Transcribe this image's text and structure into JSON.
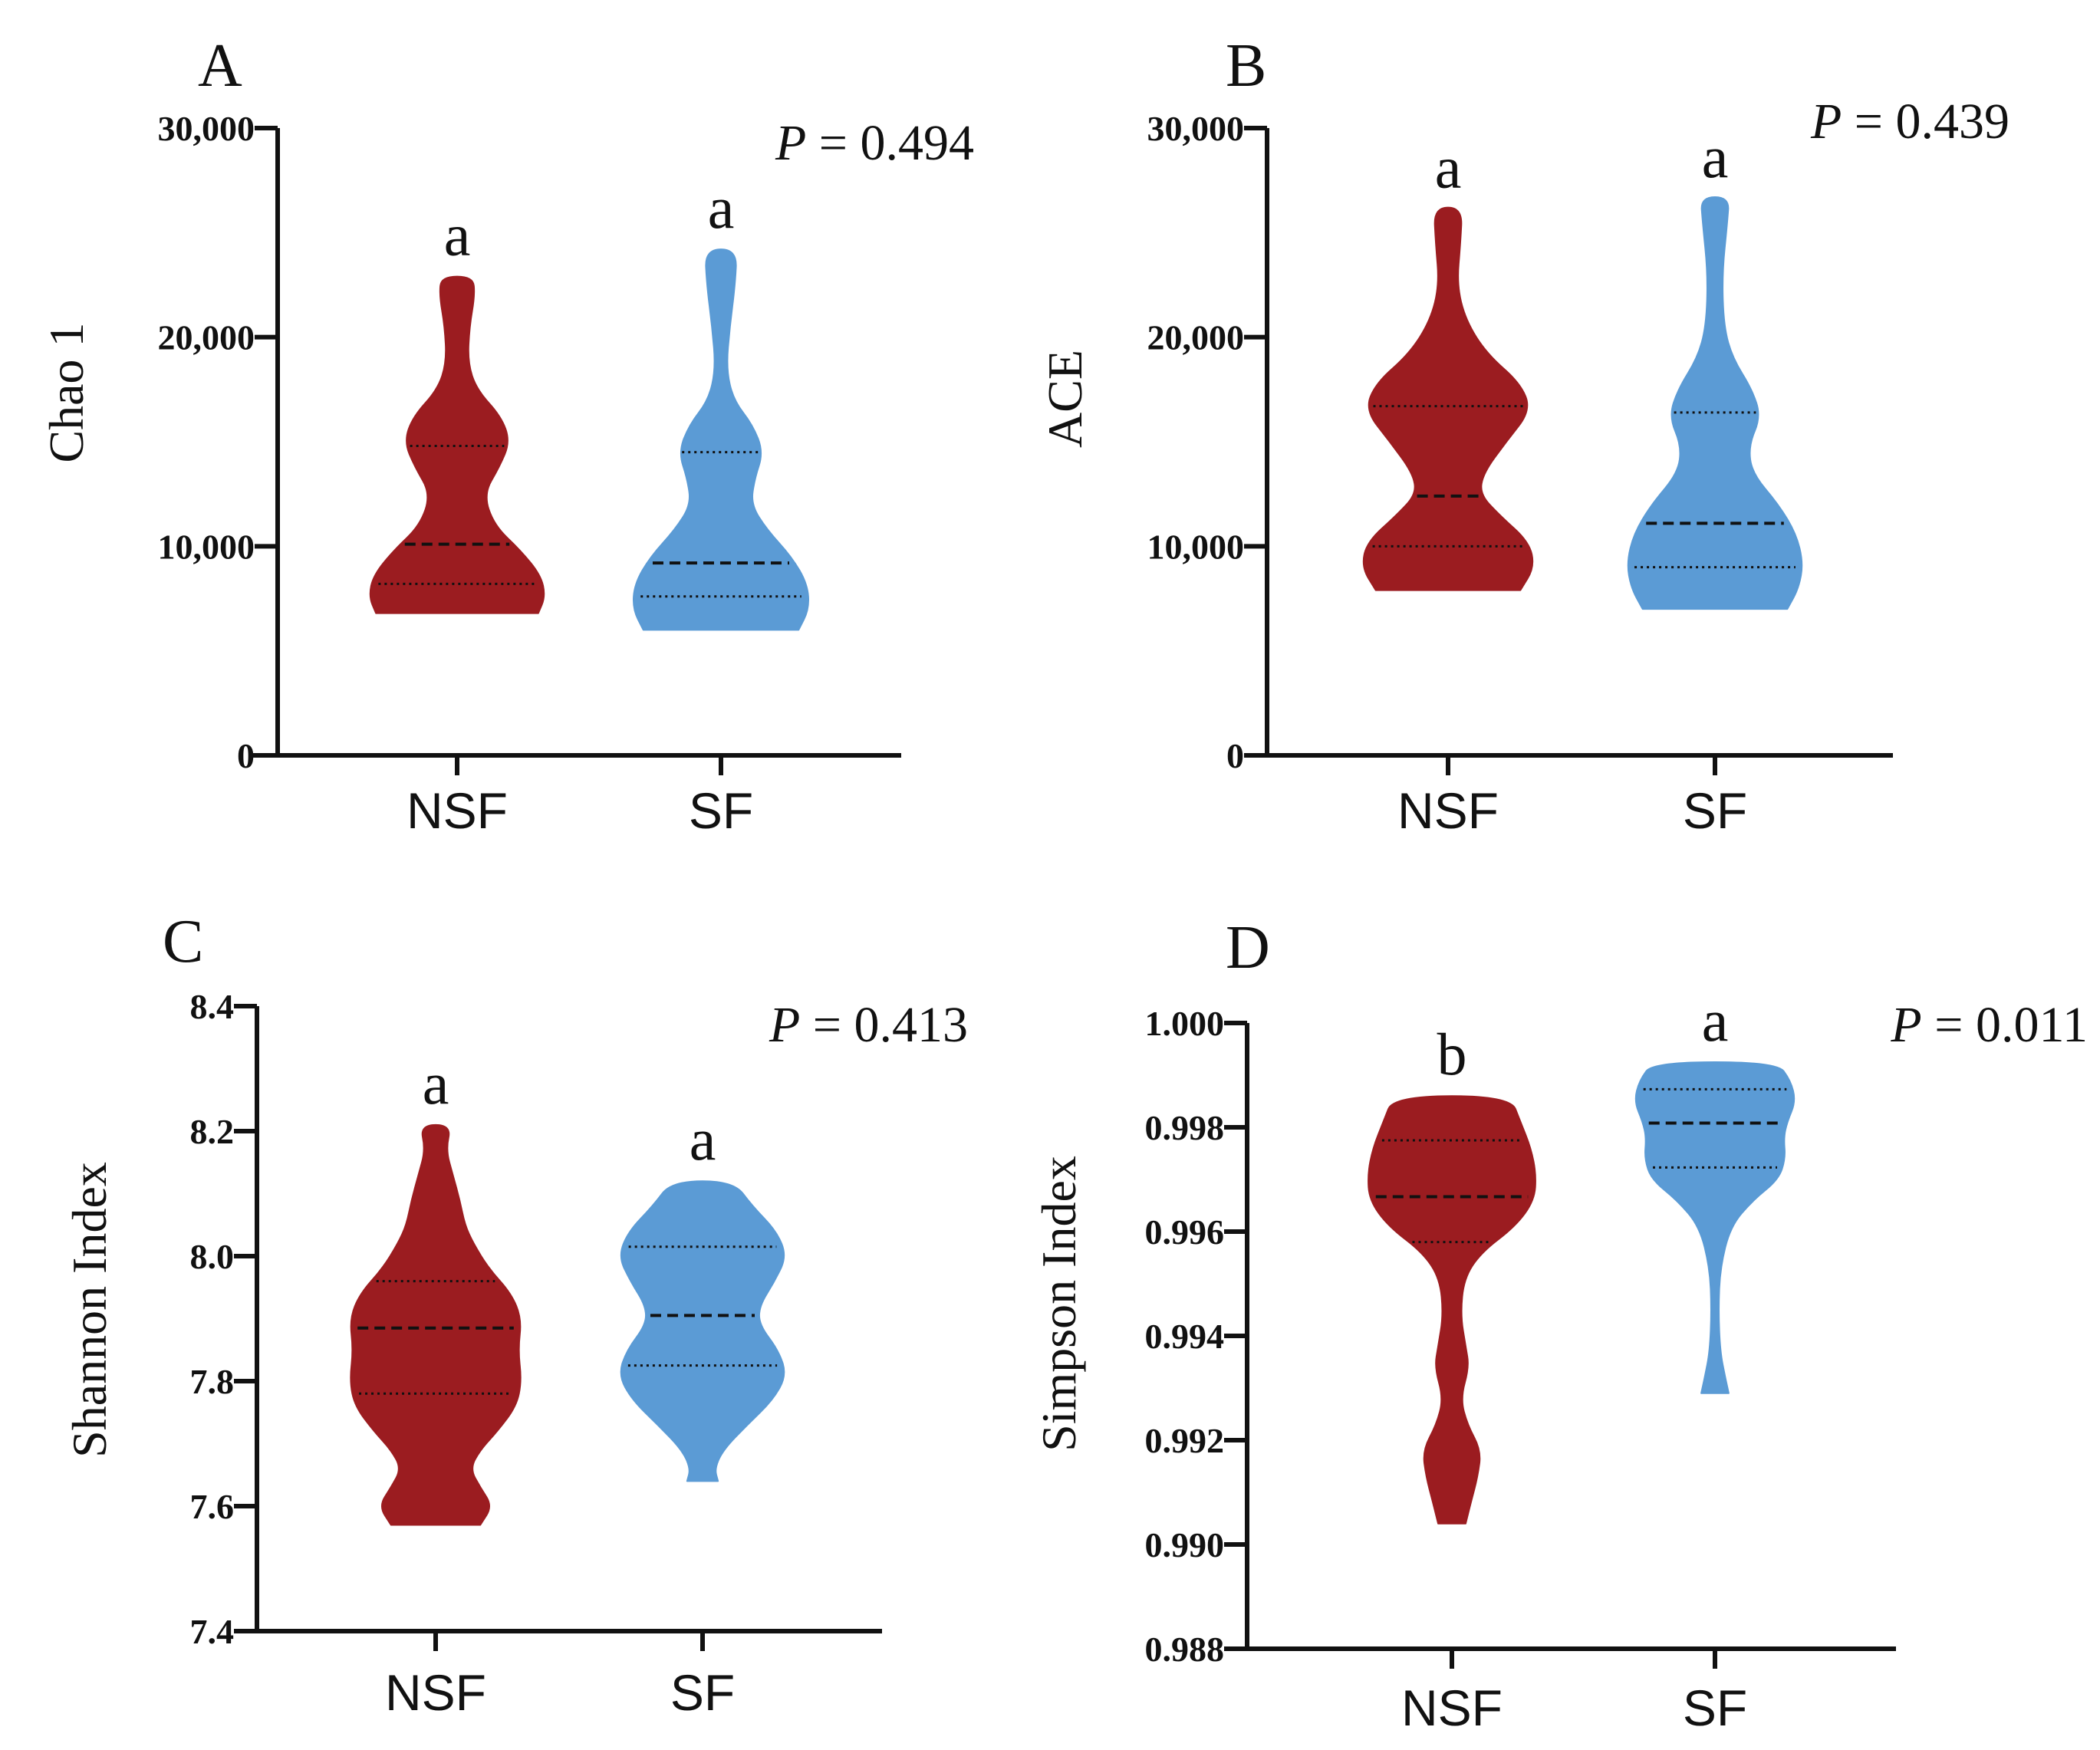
{
  "figure": {
    "colors": {
      "NSF": "#9b1c20",
      "SF": "#5b9bd5",
      "axis": "#111111"
    }
  },
  "chart_data": [
    {
      "panel": "A",
      "type": "violin",
      "ylabel": "Chao 1",
      "p_label": "P",
      "p_text": " = 0.494",
      "ylim": [
        0,
        30000
      ],
      "yticks": [
        0,
        10000,
        20000,
        30000
      ],
      "ytick_labels": [
        "0",
        "10,000",
        "20,000",
        "30,000"
      ],
      "categories": [
        "NSF",
        "SF"
      ],
      "series": [
        {
          "name": "NSF",
          "min": 6800,
          "max": 22900,
          "q1": 8200,
          "median": 10100,
          "q3": 14800,
          "sig": "a",
          "profile": [
            [
              6800,
              0.92
            ],
            [
              7600,
              1.0
            ],
            [
              8600,
              0.95
            ],
            [
              9800,
              0.72
            ],
            [
              11000,
              0.42
            ],
            [
              12500,
              0.3
            ],
            [
              13800,
              0.48
            ],
            [
              15000,
              0.6
            ],
            [
              16200,
              0.5
            ],
            [
              17500,
              0.22
            ],
            [
              18800,
              0.12
            ],
            [
              20500,
              0.14
            ],
            [
              22000,
              0.2
            ],
            [
              22900,
              0.18
            ]
          ]
        },
        {
          "name": "SF",
          "min": 6000,
          "max": 24200,
          "q1": 7600,
          "median": 9200,
          "q3": 14500,
          "sig": "a",
          "profile": [
            [
              6000,
              0.88
            ],
            [
              7000,
              1.0
            ],
            [
              8200,
              0.98
            ],
            [
              9500,
              0.8
            ],
            [
              10800,
              0.52
            ],
            [
              12000,
              0.34
            ],
            [
              13200,
              0.38
            ],
            [
              14500,
              0.48
            ],
            [
              15800,
              0.36
            ],
            [
              17000,
              0.14
            ],
            [
              18500,
              0.06
            ],
            [
              20500,
              0.1
            ],
            [
              22500,
              0.16
            ],
            [
              24200,
              0.18
            ]
          ]
        }
      ]
    },
    {
      "panel": "B",
      "type": "violin",
      "ylabel": "ACE",
      "p_label": "P",
      "p_text": " = 0.439",
      "ylim": [
        0,
        30000
      ],
      "yticks": [
        0,
        10000,
        20000,
        30000
      ],
      "ytick_labels": [
        "0",
        "10,000",
        "20,000",
        "30,000"
      ],
      "categories": [
        "NSF",
        "SF"
      ],
      "series": [
        {
          "name": "NSF",
          "min": 7900,
          "max": 26200,
          "q1": 10000,
          "median": 12400,
          "q3": 16700,
          "sig": "a",
          "profile": [
            [
              7900,
              0.82
            ],
            [
              9000,
              0.98
            ],
            [
              10200,
              0.92
            ],
            [
              11500,
              0.58
            ],
            [
              12500,
              0.36
            ],
            [
              13500,
              0.4
            ],
            [
              15000,
              0.66
            ],
            [
              16500,
              0.94
            ],
            [
              17800,
              0.82
            ],
            [
              19200,
              0.44
            ],
            [
              20800,
              0.2
            ],
            [
              22500,
              0.1
            ],
            [
              24500,
              0.14
            ],
            [
              26200,
              0.16
            ]
          ]
        },
        {
          "name": "SF",
          "min": 7000,
          "max": 26700,
          "q1": 9000,
          "median": 11100,
          "q3": 16400,
          "sig": "a",
          "profile": [
            [
              7000,
              0.82
            ],
            [
              8000,
              0.95
            ],
            [
              9200,
              1.0
            ],
            [
              10600,
              0.92
            ],
            [
              12000,
              0.72
            ],
            [
              13500,
              0.42
            ],
            [
              14800,
              0.38
            ],
            [
              16200,
              0.52
            ],
            [
              17500,
              0.42
            ],
            [
              19000,
              0.2
            ],
            [
              20500,
              0.1
            ],
            [
              23000,
              0.08
            ],
            [
              25500,
              0.14
            ],
            [
              26700,
              0.16
            ]
          ]
        }
      ]
    },
    {
      "panel": "C",
      "type": "violin",
      "ylabel": "Shannon Index",
      "p_label": "P",
      "p_text": " = 0.413",
      "ylim": [
        7.4,
        8.4
      ],
      "yticks": [
        7.4,
        7.6,
        7.8,
        8.0,
        8.2,
        8.4
      ],
      "ytick_labels": [
        "7.4",
        "7.6",
        "7.8",
        "8.0",
        "8.2",
        "8.4"
      ],
      "categories": [
        "NSF",
        "SF"
      ],
      "series": [
        {
          "name": "NSF",
          "min": 7.57,
          "max": 8.21,
          "q1": 7.78,
          "median": 7.885,
          "q3": 7.96,
          "sig": "a",
          "profile": [
            [
              7.57,
              0.52
            ],
            [
              7.6,
              0.66
            ],
            [
              7.63,
              0.52
            ],
            [
              7.66,
              0.4
            ],
            [
              7.69,
              0.52
            ],
            [
              7.72,
              0.72
            ],
            [
              7.76,
              0.94
            ],
            [
              7.8,
              1.0
            ],
            [
              7.85,
              0.96
            ],
            [
              7.9,
              1.0
            ],
            [
              7.94,
              0.88
            ],
            [
              7.98,
              0.62
            ],
            [
              8.02,
              0.44
            ],
            [
              8.05,
              0.34
            ],
            [
              8.09,
              0.28
            ],
            [
              8.13,
              0.2
            ],
            [
              8.17,
              0.12
            ],
            [
              8.21,
              0.18
            ]
          ]
        },
        {
          "name": "SF",
          "min": 7.64,
          "max": 8.12,
          "q1": 7.825,
          "median": 7.905,
          "q3": 8.015,
          "sig": "a",
          "profile": [
            [
              7.64,
              0.18
            ],
            [
              7.66,
              0.14
            ],
            [
              7.69,
              0.24
            ],
            [
              7.73,
              0.52
            ],
            [
              7.77,
              0.82
            ],
            [
              7.81,
              0.98
            ],
            [
              7.85,
              0.88
            ],
            [
              7.89,
              0.66
            ],
            [
              7.92,
              0.66
            ],
            [
              7.96,
              0.84
            ],
            [
              8.0,
              0.98
            ],
            [
              8.04,
              0.86
            ],
            [
              8.08,
              0.58
            ],
            [
              8.12,
              0.36
            ]
          ]
        }
      ]
    },
    {
      "panel": "D",
      "type": "violin",
      "ylabel": "Simpson Index",
      "p_label": "P",
      "p_text": " = 0.011",
      "ylim": [
        0.988,
        1.0
      ],
      "yticks": [
        0.988,
        0.99,
        0.992,
        0.994,
        0.996,
        0.998,
        1.0
      ],
      "ytick_labels": [
        "0.988",
        "0.990",
        "0.992",
        "0.994",
        "0.996",
        "0.998",
        "1.000"
      ],
      "categories": [
        "NSF",
        "SF"
      ],
      "series": [
        {
          "name": "NSF",
          "min": 0.9904,
          "max": 0.9986,
          "q1": 0.9958,
          "median": 0.99667,
          "q3": 0.99775,
          "sig": "b",
          "profile": [
            [
              0.9904,
              0.16
            ],
            [
              0.9908,
              0.22
            ],
            [
              0.9913,
              0.3
            ],
            [
              0.9918,
              0.34
            ],
            [
              0.9923,
              0.18
            ],
            [
              0.9928,
              0.1
            ],
            [
              0.9934,
              0.2
            ],
            [
              0.9938,
              0.16
            ],
            [
              0.9944,
              0.1
            ],
            [
              0.9951,
              0.14
            ],
            [
              0.9956,
              0.34
            ],
            [
              0.9961,
              0.74
            ],
            [
              0.9966,
              0.96
            ],
            [
              0.9971,
              0.98
            ],
            [
              0.9976,
              0.92
            ],
            [
              0.9981,
              0.8
            ],
            [
              0.9986,
              0.68
            ]
          ]
        },
        {
          "name": "SF",
          "min": 0.9929,
          "max": 0.99925,
          "q1": 0.99723,
          "median": 0.99808,
          "q3": 0.99873,
          "sig": "a",
          "profile": [
            [
              0.9929,
              0.16
            ],
            [
              0.9932,
              0.12
            ],
            [
              0.9937,
              0.06
            ],
            [
              0.9945,
              0.04
            ],
            [
              0.9953,
              0.06
            ],
            [
              0.9961,
              0.18
            ],
            [
              0.9966,
              0.44
            ],
            [
              0.997,
              0.74
            ],
            [
              0.9974,
              0.82
            ],
            [
              0.9978,
              0.8
            ],
            [
              0.9981,
              0.84
            ],
            [
              0.9985,
              0.94
            ],
            [
              0.9989,
              0.88
            ],
            [
              0.99925,
              0.72
            ]
          ]
        }
      ]
    }
  ]
}
